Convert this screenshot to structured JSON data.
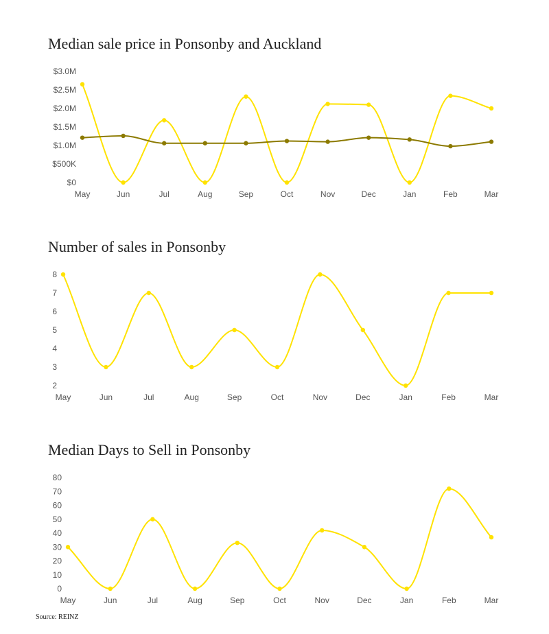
{
  "colors": {
    "ponsonby": "#FFE200",
    "auckland": "#8C7A00",
    "tick_text": "#555555",
    "title_text": "#222222"
  },
  "chart_data": [
    {
      "type": "line",
      "title": "Median sale price in Ponsonby and Auckland",
      "categories": [
        "May",
        "Jun",
        "Jul",
        "Aug",
        "Sep",
        "Oct",
        "Nov",
        "Dec",
        "Jan",
        "Feb",
        "Mar"
      ],
      "yticks": [
        "$0",
        "$500K",
        "$1.0M",
        "$1.5M",
        "$2.0M",
        "$2.5M",
        "$3.0M"
      ],
      "ylim": [
        0,
        3000000
      ],
      "grid": false,
      "series": [
        {
          "values": [
            2650000,
            0,
            1680000,
            0,
            2320000,
            0,
            2120000,
            2100000,
            0,
            2340000,
            2000000
          ],
          "color": "#FFE200",
          "markers": "dot"
        },
        {
          "values": [
            1210000,
            1260000,
            1060000,
            1060000,
            1060000,
            1120000,
            1100000,
            1210000,
            1160000,
            980000,
            1100000
          ],
          "color": "#8C7A00",
          "markers": "dot"
        }
      ]
    },
    {
      "type": "line",
      "title": "Number of sales in Ponsonby",
      "categories": [
        "May",
        "Jun",
        "Jul",
        "Aug",
        "Sep",
        "Oct",
        "Nov",
        "Dec",
        "Jan",
        "Feb",
        "Mar"
      ],
      "yticks": [
        "2",
        "3",
        "4",
        "5",
        "6",
        "7",
        "8"
      ],
      "ylim": [
        2,
        8
      ],
      "grid": false,
      "series": [
        {
          "values": [
            8,
            3,
            7,
            3,
            5,
            3,
            8,
            5,
            2,
            7,
            7
          ],
          "color": "#FFE200",
          "markers": "dot"
        }
      ]
    },
    {
      "type": "line",
      "title": "Median Days to Sell in Ponsonby",
      "categories": [
        "May",
        "Jun",
        "Jul",
        "Aug",
        "Sep",
        "Oct",
        "Nov",
        "Dec",
        "Jan",
        "Feb",
        "Mar"
      ],
      "yticks": [
        "0",
        "10",
        "20",
        "30",
        "40",
        "50",
        "60",
        "70",
        "80"
      ],
      "ylim": [
        0,
        80
      ],
      "grid": false,
      "series": [
        {
          "values": [
            30,
            0,
            50,
            0,
            33,
            0,
            42,
            30,
            0,
            72,
            37
          ],
          "color": "#FFE200",
          "markers": "dot"
        }
      ]
    }
  ],
  "source": "Source: REINZ"
}
